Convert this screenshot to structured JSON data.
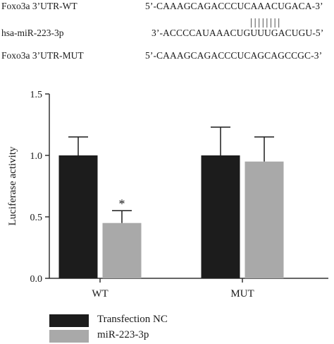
{
  "sequences": [
    {
      "label": "Foxo3a 3’UTR-WT",
      "sequence": "5’-CAAAGCAGACCCUCAAACUGACA-3’"
    },
    {
      "label": "hsa-miR-223-3p",
      "sequence": "3’-ACCCCAUAAACUGUUUGACUGU-5’"
    },
    {
      "label": "Foxo3a 3’UTR-MUT",
      "sequence": "5’-CAAAGCAGACCCUCAGCAGCCGC-3’"
    }
  ],
  "pairing_marks": "||||||||",
  "colors": {
    "transfection_nc": "#1c1c1c",
    "mir": "#a9a9a9",
    "axis": "#333333"
  },
  "chart_data": {
    "type": "bar",
    "categories": [
      "WT",
      "MUT"
    ],
    "series": [
      {
        "name": "Transfection NC",
        "values": [
          1.0,
          1.0
        ],
        "errors": [
          0.15,
          0.23
        ]
      },
      {
        "name": "miR-223-3p",
        "values": [
          0.45,
          0.95
        ],
        "errors": [
          0.1,
          0.2
        ]
      }
    ],
    "annotations": [
      {
        "category": "WT",
        "series": "miR-223-3p",
        "text": "*"
      }
    ],
    "xlabel": "",
    "ylabel": "Luciferase activity",
    "ylim": [
      0,
      1.5
    ],
    "yticks": [
      "0.0",
      "0.5",
      "1.0",
      "1.5"
    ],
    "legend": "bottom-left",
    "grid": false
  }
}
